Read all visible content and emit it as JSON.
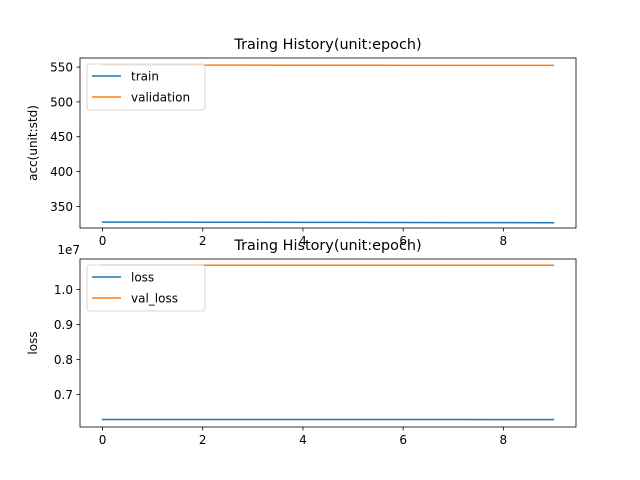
{
  "chart_data": [
    {
      "type": "line",
      "title": "Traing History(unit:epoch)",
      "xlabel": "",
      "ylabel": "acc(unit:std)",
      "exponent_label": "",
      "xlim": [
        -0.45,
        9.45
      ],
      "ylim": [
        319,
        563
      ],
      "xticks": [
        0,
        2,
        4,
        6,
        8
      ],
      "yticks": [
        350,
        400,
        450,
        500,
        550
      ],
      "ytick_labels": [
        "350",
        "400",
        "450",
        "500",
        "550"
      ],
      "legend": "top-left",
      "x": [
        0,
        1,
        2,
        3,
        4,
        5,
        6,
        7,
        8,
        9
      ],
      "series": [
        {
          "name": "train",
          "color": "#1f77b4",
          "values": [
            327.5,
            327.4,
            327.3,
            327.2,
            327.1,
            327.0,
            326.9,
            326.8,
            326.7,
            326.6
          ]
        },
        {
          "name": "validation",
          "color": "#ff7f0e",
          "values": [
            552.8,
            552.8,
            552.7,
            552.7,
            552.6,
            552.6,
            552.5,
            552.5,
            552.4,
            552.4
          ]
        }
      ]
    },
    {
      "type": "line",
      "title": "Traing History(unit:epoch)",
      "xlabel": "",
      "ylabel": "loss",
      "exponent_label": "1e7",
      "xlim": [
        -0.45,
        9.45
      ],
      "ylim": [
        0.607,
        1.087
      ],
      "xticks": [
        0,
        2,
        4,
        6,
        8
      ],
      "yticks": [
        0.7,
        0.8,
        0.9,
        1.0
      ],
      "ytick_labels": [
        "0.7",
        "0.8",
        "0.9",
        "1.0"
      ],
      "legend": "top-left",
      "x": [
        0,
        1,
        2,
        3,
        4,
        5,
        6,
        7,
        8,
        9
      ],
      "series": [
        {
          "name": "loss",
          "color": "#1f77b4",
          "values": [
            0.6285,
            0.6285,
            0.6284,
            0.6284,
            0.6284,
            0.6283,
            0.6283,
            0.6283,
            0.6282,
            0.6282
          ]
        },
        {
          "name": "val_loss",
          "color": "#ff7f0e",
          "values": [
            1.069,
            1.069,
            1.069,
            1.069,
            1.069,
            1.069,
            1.069,
            1.069,
            1.069,
            1.069
          ]
        }
      ]
    }
  ]
}
